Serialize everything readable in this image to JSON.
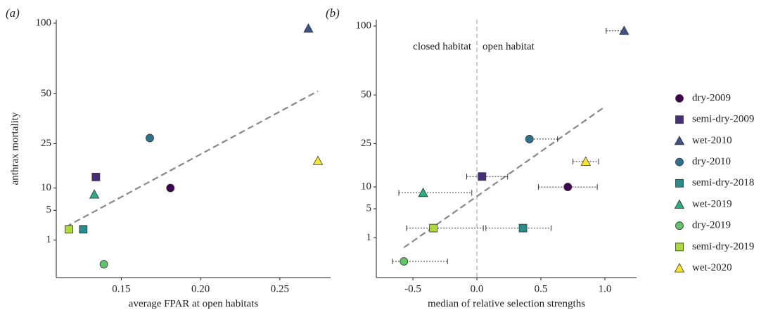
{
  "chart_data": [
    {
      "type": "scatter",
      "panel": "(a)",
      "x_label": "average FPAR at open habitats",
      "y_label": "anthrax mortality",
      "yscale": "sqrt",
      "ylim": [
        0,
        100
      ],
      "yticks": [
        1,
        5,
        10,
        25,
        50,
        100
      ],
      "xlim": [
        0.109,
        0.282
      ],
      "xticks": [
        0.15,
        {
          "value": 0.2,
          "label": "0.20"
        },
        0.25
      ],
      "trend": {
        "x": [
          0.115,
          0.274
        ],
        "y": [
          2.4,
          51.6
        ]
      },
      "series": [
        {
          "name": "dry-2009",
          "color": "#440154",
          "marker": "circle",
          "x": [
            0.181
          ],
          "values": [
            10
          ]
        },
        {
          "name": "semi-dry-2009",
          "color": "#472d7b",
          "marker": "square",
          "x": [
            0.134
          ],
          "values": [
            13.1
          ]
        },
        {
          "name": "wet-2010",
          "color": "#3b528b",
          "marker": "triangle",
          "x": [
            0.268
          ],
          "values": [
            95.7
          ]
        },
        {
          "name": "dry-2010",
          "color": "#2c728e",
          "marker": "circle",
          "x": [
            0.168
          ],
          "values": [
            27.4
          ]
        },
        {
          "name": "semi-dry-2018",
          "color": "#21908d",
          "marker": "square",
          "x": [
            0.126
          ],
          "values": [
            2.1
          ]
        },
        {
          "name": "wet-2019",
          "color": "#27ad81",
          "marker": "triangle",
          "x": [
            0.133
          ],
          "values": [
            8.4
          ]
        },
        {
          "name": "dry-2019",
          "color": "#5dc863",
          "marker": "circle",
          "x": [
            0.139
          ],
          "values": [
            0
          ]
        },
        {
          "name": "semi-dry-2019",
          "color": "#aadc32",
          "marker": "square",
          "x": [
            0.117
          ],
          "values": [
            2.1
          ]
        },
        {
          "name": "wet-2020",
          "color": "#fde725",
          "marker": "triangle",
          "x": [
            0.274
          ],
          "values": [
            18.4
          ]
        }
      ]
    },
    {
      "type": "scatter",
      "panel": "(b)",
      "x_label": "median of relative selection strengths",
      "annotations": [
        "closed habitat",
        "open habitat"
      ],
      "vline": 0,
      "yscale": "sqrt",
      "ylim": [
        0,
        100
      ],
      "yticks": [
        1,
        5,
        10,
        25,
        50,
        100
      ],
      "xlim": [
        -0.786,
        1.247
      ],
      "xticks": [
        -0.5,
        {
          "value": 0,
          "label": "0.0"
        },
        0.5,
        {
          "value": 1,
          "label": "1.0"
        }
      ],
      "trend": {
        "x": [
          -0.57,
          1.0
        ],
        "y": [
          0.35,
          43.2
        ]
      },
      "series": [
        {
          "name": "dry-2009",
          "color": "#440154",
          "marker": "circle",
          "x": [
            0.71
          ],
          "xlow": [
            0.48
          ],
          "xhigh": [
            0.94
          ],
          "values": [
            10
          ]
        },
        {
          "name": "semi-dry-2009",
          "color": "#472d7b",
          "marker": "square",
          "x": [
            0.04
          ],
          "xlow": [
            -0.08
          ],
          "xhigh": [
            0.24
          ],
          "values": [
            13
          ]
        },
        {
          "name": "wet-2010",
          "color": "#3b528b",
          "marker": "triangle",
          "x": [
            1.15
          ],
          "xlow": [
            1.01
          ],
          "xhigh": [
            1.15
          ],
          "values": [
            96
          ]
        },
        {
          "name": "dry-2010",
          "color": "#2c728e",
          "marker": "circle",
          "x": [
            0.41
          ],
          "xlow": [
            0.4
          ],
          "xhigh": [
            0.63
          ],
          "values": [
            27
          ]
        },
        {
          "name": "semi-dry-2018",
          "color": "#21908d",
          "marker": "square",
          "x": [
            0.36
          ],
          "xlow": [
            0.07
          ],
          "xhigh": [
            0.58
          ],
          "values": [
            2
          ]
        },
        {
          "name": "wet-2019",
          "color": "#27ad81",
          "marker": "triangle",
          "x": [
            -0.42
          ],
          "xlow": [
            -0.61
          ],
          "xhigh": [
            -0.04
          ],
          "values": [
            8.5
          ]
        },
        {
          "name": "dry-2019",
          "color": "#5dc863",
          "marker": "circle",
          "x": [
            -0.57
          ],
          "xlow": [
            -0.66
          ],
          "xhigh": [
            -0.23
          ],
          "values": [
            0
          ]
        },
        {
          "name": "semi-dry-2019",
          "color": "#aadc32",
          "marker": "square",
          "x": [
            -0.34
          ],
          "xlow": [
            -0.55
          ],
          "xhigh": [
            0.05
          ],
          "values": [
            2
          ]
        },
        {
          "name": "wet-2020",
          "color": "#fde725",
          "marker": "triangle",
          "x": [
            0.85
          ],
          "xlow": [
            0.75
          ],
          "xhigh": [
            0.95
          ],
          "values": [
            18
          ]
        }
      ]
    }
  ]
}
